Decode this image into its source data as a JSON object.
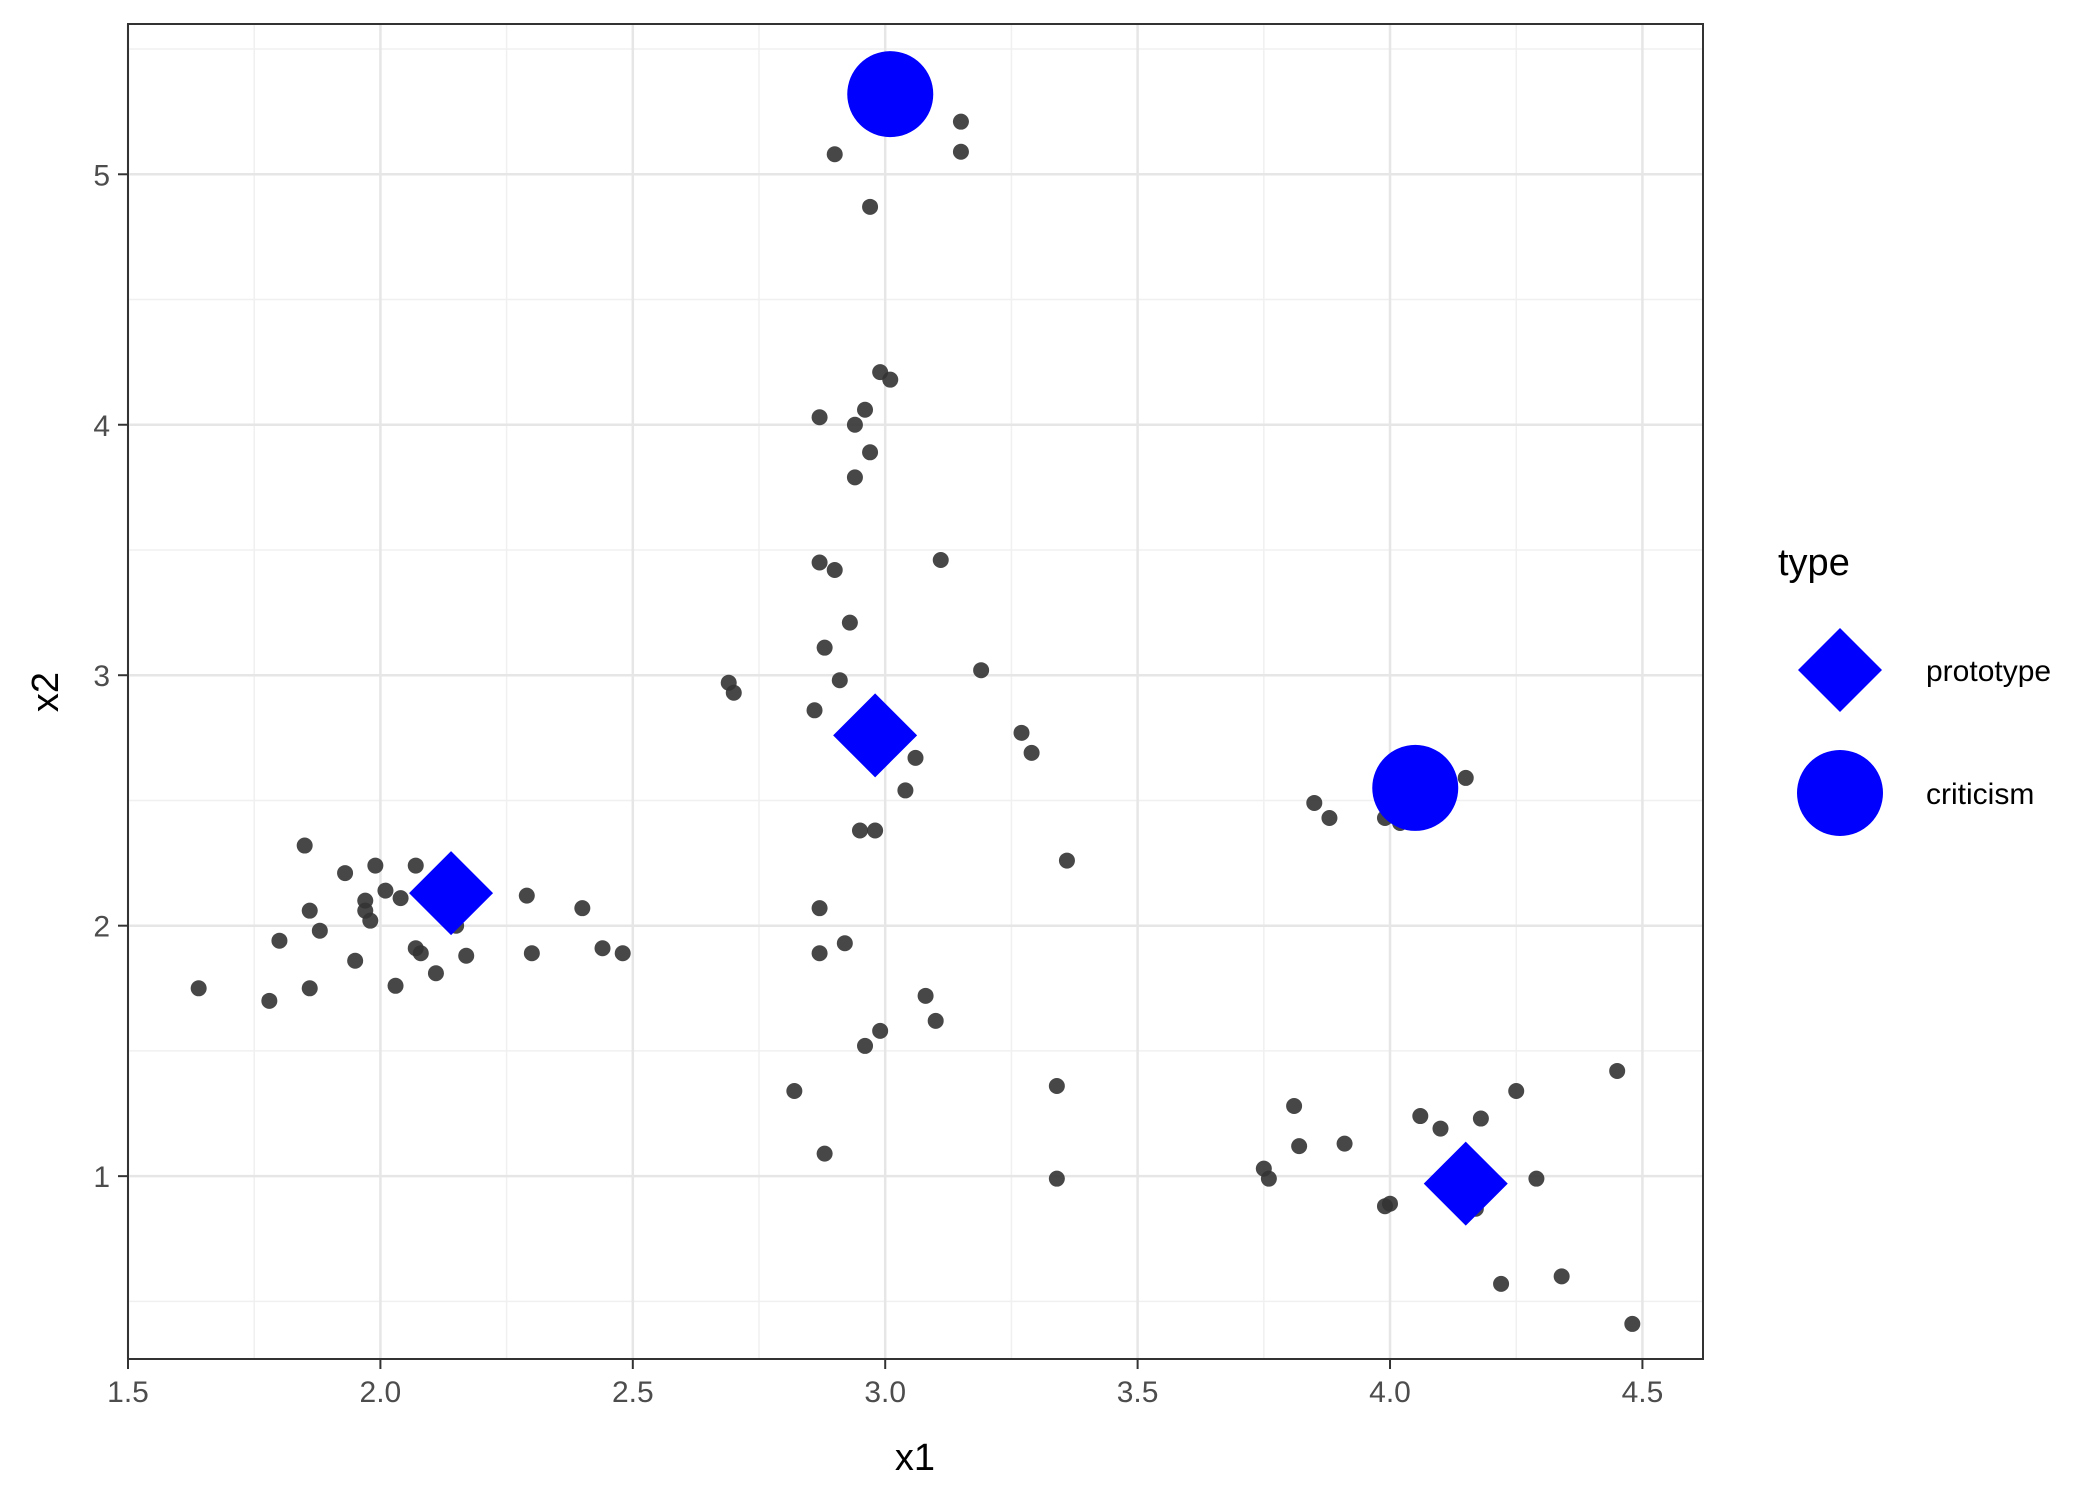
{
  "chart_data": {
    "type": "scatter",
    "title": "",
    "xlabel": "x1",
    "ylabel": "x2",
    "xlim": [
      1.5,
      4.62
    ],
    "ylim": [
      0.27,
      5.6
    ],
    "x_ticks": [
      1.5,
      2.0,
      2.5,
      3.0,
      3.5,
      4.0,
      4.5
    ],
    "x_tick_labels": [
      "1.5",
      "2.0",
      "2.5",
      "3.0",
      "3.5",
      "4.0",
      "4.5"
    ],
    "y_ticks": [
      1,
      2,
      3,
      4,
      5
    ],
    "y_tick_labels": [
      "1",
      "2",
      "3",
      "4",
      "5"
    ],
    "grid": true,
    "legend": {
      "title": "type",
      "position": "right",
      "entries": [
        {
          "label": "prototype",
          "shape": "diamond",
          "color": "#0000ff"
        },
        {
          "label": "criticism",
          "shape": "circle",
          "color": "#0000ff"
        }
      ]
    },
    "series": [
      {
        "color": "#333333",
        "shape": "circle",
        "points": [
          [
            1.64,
            1.75
          ],
          [
            1.78,
            1.7
          ],
          [
            1.8,
            1.94
          ],
          [
            1.86,
            1.75
          ],
          [
            1.86,
            2.06
          ],
          [
            1.85,
            2.32
          ],
          [
            1.88,
            1.98
          ],
          [
            1.93,
            2.21
          ],
          [
            1.95,
            1.86
          ],
          [
            1.97,
            2.1
          ],
          [
            1.97,
            2.06
          ],
          [
            1.98,
            2.02
          ],
          [
            1.99,
            2.24
          ],
          [
            2.01,
            2.14
          ],
          [
            2.03,
            1.76
          ],
          [
            2.04,
            2.11
          ],
          [
            2.07,
            2.24
          ],
          [
            2.07,
            1.91
          ],
          [
            2.08,
            1.89
          ],
          [
            2.11,
            1.81
          ],
          [
            2.15,
            2.0
          ],
          [
            2.17,
            1.88
          ],
          [
            2.29,
            2.12
          ],
          [
            2.3,
            1.89
          ],
          [
            2.4,
            2.07
          ],
          [
            2.44,
            1.91
          ],
          [
            2.48,
            1.89
          ],
          [
            2.69,
            2.97
          ],
          [
            2.7,
            2.93
          ],
          [
            2.82,
            1.34
          ],
          [
            2.86,
            2.86
          ],
          [
            2.87,
            4.03
          ],
          [
            2.87,
            3.45
          ],
          [
            2.87,
            2.07
          ],
          [
            2.87,
            1.89
          ],
          [
            2.88,
            1.09
          ],
          [
            2.88,
            3.11
          ],
          [
            2.9,
            5.08
          ],
          [
            2.9,
            3.42
          ],
          [
            2.91,
            2.98
          ],
          [
            2.92,
            1.93
          ],
          [
            2.93,
            3.21
          ],
          [
            2.94,
            4.0
          ],
          [
            2.94,
            3.79
          ],
          [
            2.95,
            2.38
          ],
          [
            2.96,
            4.06
          ],
          [
            2.96,
            1.52
          ],
          [
            2.97,
            4.87
          ],
          [
            2.97,
            3.89
          ],
          [
            2.98,
            2.38
          ],
          [
            2.99,
            4.21
          ],
          [
            2.99,
            1.58
          ],
          [
            3.01,
            4.18
          ],
          [
            3.04,
            2.54
          ],
          [
            3.06,
            2.67
          ],
          [
            3.08,
            1.72
          ],
          [
            3.1,
            1.62
          ],
          [
            3.11,
            3.46
          ],
          [
            3.15,
            5.21
          ],
          [
            3.15,
            5.09
          ],
          [
            3.19,
            3.02
          ],
          [
            3.27,
            2.77
          ],
          [
            3.29,
            2.69
          ],
          [
            3.34,
            1.36
          ],
          [
            3.34,
            0.99
          ],
          [
            3.36,
            2.26
          ],
          [
            3.75,
            1.03
          ],
          [
            3.76,
            0.99
          ],
          [
            3.81,
            1.28
          ],
          [
            3.82,
            1.12
          ],
          [
            3.85,
            2.49
          ],
          [
            3.88,
            2.43
          ],
          [
            3.91,
            1.13
          ],
          [
            3.99,
            2.43
          ],
          [
            3.99,
            0.88
          ],
          [
            4.0,
            0.89
          ],
          [
            4.02,
            2.41
          ],
          [
            4.06,
            1.24
          ],
          [
            4.1,
            1.19
          ],
          [
            4.15,
            2.59
          ],
          [
            4.17,
            0.87
          ],
          [
            4.18,
            1.23
          ],
          [
            4.22,
            0.57
          ],
          [
            4.25,
            1.34
          ],
          [
            4.29,
            0.99
          ],
          [
            4.34,
            0.6
          ],
          [
            4.45,
            1.42
          ],
          [
            4.48,
            0.41
          ]
        ]
      },
      {
        "name": "prototype",
        "color": "#0000ff",
        "shape": "diamond",
        "points": [
          [
            2.14,
            2.13
          ],
          [
            2.98,
            2.76
          ],
          [
            4.15,
            0.97
          ]
        ]
      },
      {
        "name": "criticism",
        "color": "#0000ff",
        "shape": "circle",
        "points": [
          [
            3.01,
            5.32
          ],
          [
            4.05,
            2.55
          ]
        ]
      }
    ]
  }
}
